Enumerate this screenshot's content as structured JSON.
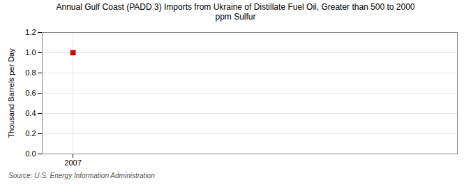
{
  "chart_data": {
    "type": "scatter",
    "title": "Annual Gulf Coast (PADD 3) Imports from Ukraine of Distillate Fuel Oil, Greater than 500 to 2000\nppm Sulfur",
    "ylabel": "Thousand Barrels per Day",
    "annotations": [
      "Source: U.S. Energy Information Administration"
    ],
    "x": [
      2007
    ],
    "values": [
      1.0
    ],
    "color": "#cc0000",
    "marker": "square",
    "xlim": [
      2006.4,
      2014.5
    ],
    "xticks": [
      2007
    ],
    "ylim": [
      0.0,
      1.2
    ],
    "yticks": [
      {
        "value": 0.0,
        "label": "0.0"
      },
      0.2,
      0.4,
      0.6,
      0.8,
      {
        "value": 1.0,
        "label": "1.0"
      },
      1.2
    ],
    "grid": true
  }
}
